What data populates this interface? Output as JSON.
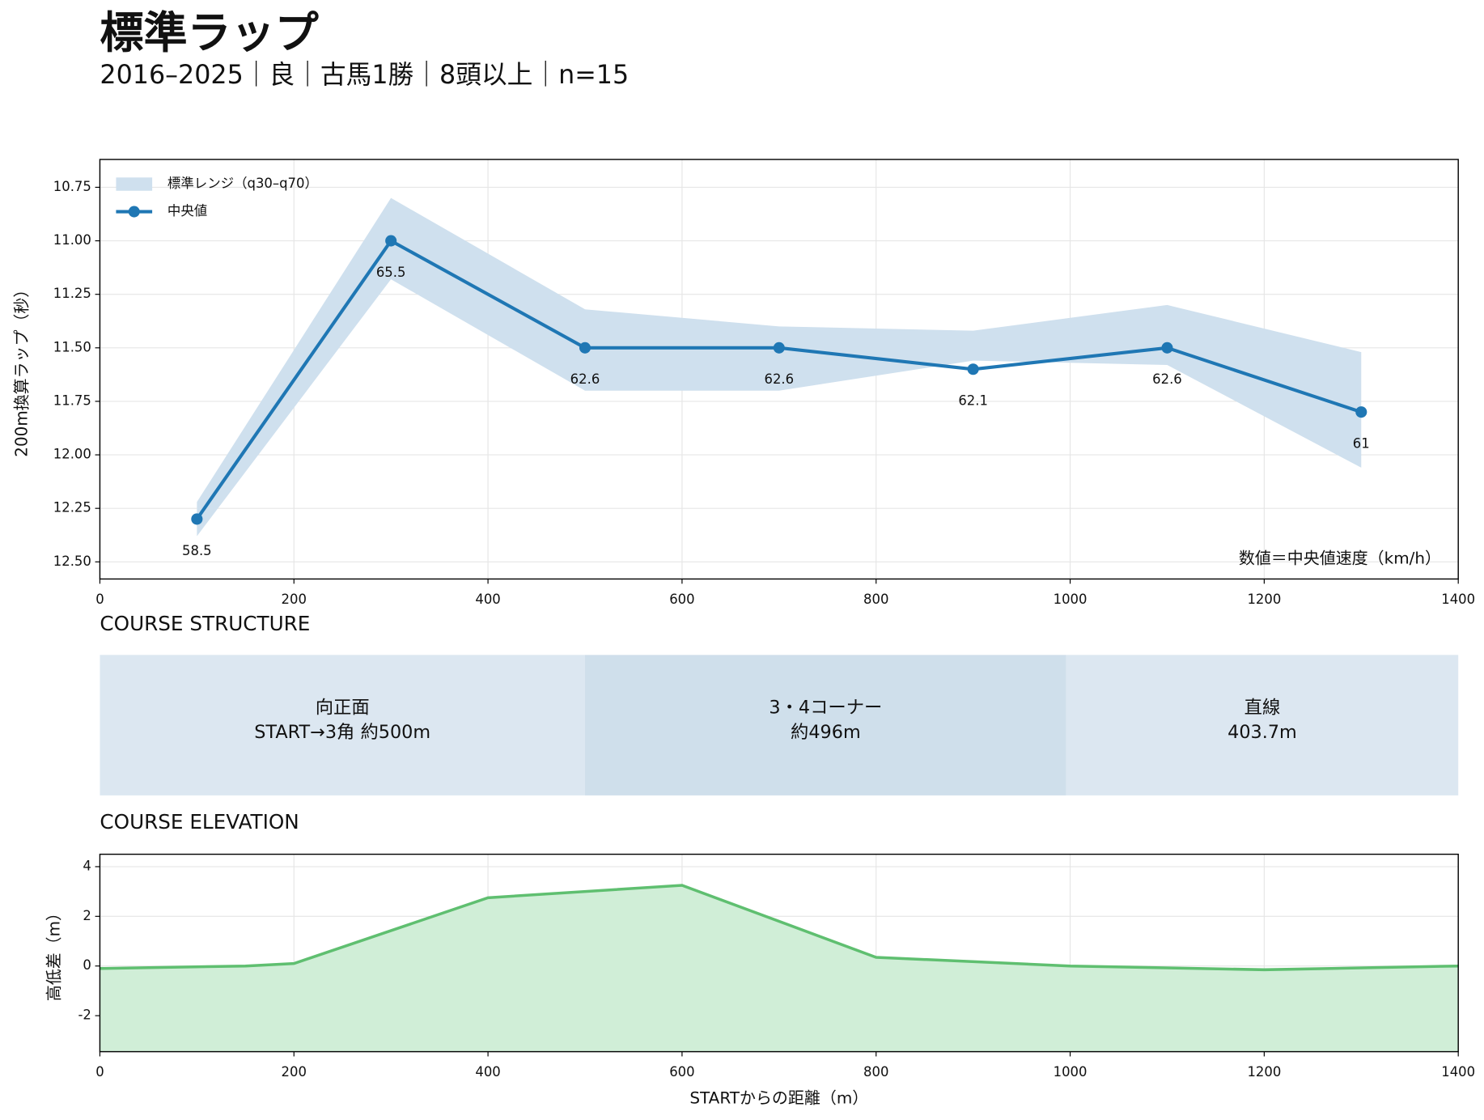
{
  "title": "標準ラップ",
  "subtitle": "2016–2025｜良｜古馬1勝｜8頭以上｜n=15",
  "chart_data": [
    {
      "type": "line",
      "ylabel": "200m換算ラップ（秒）",
      "annotation": "数値＝中央値速度（km/h）",
      "x": [
        100,
        300,
        500,
        700,
        900,
        1100,
        1300
      ],
      "series": [
        {
          "name": "標準レンジ（q30–q70）",
          "color": "#cfe0ee",
          "low": [
            12.22,
            10.8,
            11.32,
            11.4,
            11.42,
            11.3,
            11.52
          ],
          "high": [
            12.38,
            11.18,
            11.7,
            11.7,
            11.56,
            11.58,
            12.06
          ]
        },
        {
          "name": "中央値",
          "color": "#1f77b4",
          "values": [
            12.3,
            11.0,
            11.5,
            11.5,
            11.6,
            11.5,
            11.8
          ],
          "speeds": [
            58.5,
            65.5,
            62.6,
            62.6,
            62.1,
            62.6,
            61.0
          ]
        }
      ],
      "xlim": [
        0,
        1400
      ],
      "xticks": [
        0,
        200,
        400,
        600,
        800,
        1000,
        1200,
        1400
      ],
      "ylim": [
        12.58,
        10.62
      ],
      "yticks": [
        10.75,
        {
          "value": 11,
          "label": "11.00"
        },
        11.25,
        {
          "value": 11.5,
          "label": "11.50"
        },
        11.75,
        {
          "value": 12,
          "label": "12.00"
        },
        12.25,
        {
          "value": 12.5,
          "label": "12.50"
        }
      ],
      "grid": true,
      "legend": "upper-left"
    },
    {
      "type": "span",
      "title": "COURSE STRUCTURE",
      "xlim": [
        0,
        1400
      ],
      "segments": [
        {
          "start": 0,
          "end": 500,
          "lines": [
            "向正面",
            "START→3角 約500m"
          ],
          "color": "#dce7f1"
        },
        {
          "start": 500,
          "end": 996,
          "lines": [
            "3・4コーナー",
            "約496m"
          ],
          "color": "#cfdfeb"
        },
        {
          "start": 996,
          "end": 1400,
          "lines": [
            "直線",
            "403.7m"
          ],
          "color": "#dce7f1"
        }
      ]
    },
    {
      "type": "area",
      "title": "COURSE ELEVATION",
      "xlabel": "STARTからの距離（m）",
      "ylabel": "高低差（m）",
      "x": [
        0,
        150,
        200,
        400,
        600,
        800,
        1000,
        1200,
        1400
      ],
      "values": [
        -0.1,
        0,
        0.1,
        2.75,
        3.25,
        0.35,
        0,
        -0.15,
        0
      ],
      "color": "#5fbf70",
      "fill": "#d0eed7",
      "xlim": [
        0,
        1400
      ],
      "xticks": [
        0,
        200,
        400,
        600,
        800,
        1000,
        1200,
        1400
      ],
      "ylim": [
        -3.45,
        4.5
      ],
      "yticks": [
        -2,
        0,
        2,
        4
      ],
      "grid": true
    }
  ]
}
